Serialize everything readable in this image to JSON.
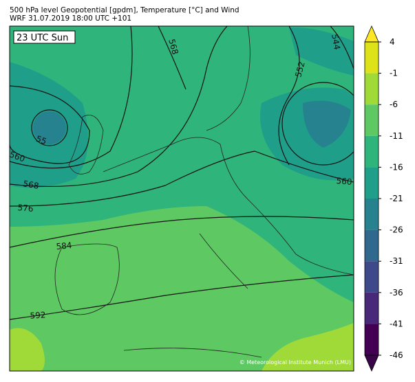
{
  "header": {
    "title": "500 hPa level Geopotential [gpdm], Temperature [°C] and Wind",
    "subtitle": "WRF 31.07.2019 18:00 UTC +101"
  },
  "map": {
    "time_label": "23 UTC Sun",
    "contour_labels": [
      544,
      552,
      568,
      55,
      560,
      568,
      576,
      584,
      592,
      560
    ],
    "copyright": "© Meteorological Institute Munich (LMU)"
  },
  "colorbar": {
    "ticks": [
      4,
      -1,
      -6,
      -11,
      -16,
      -21,
      -26,
      -31,
      -36,
      -41,
      -46
    ],
    "colors": [
      "#dde318",
      "#a0da39",
      "#5ec962",
      "#2fb47c",
      "#1f9e89",
      "#26828e",
      "#31688e",
      "#3e4989",
      "#482878",
      "#440154"
    ],
    "extend_colors": [
      "#fde725",
      "#3a0448"
    ]
  }
}
